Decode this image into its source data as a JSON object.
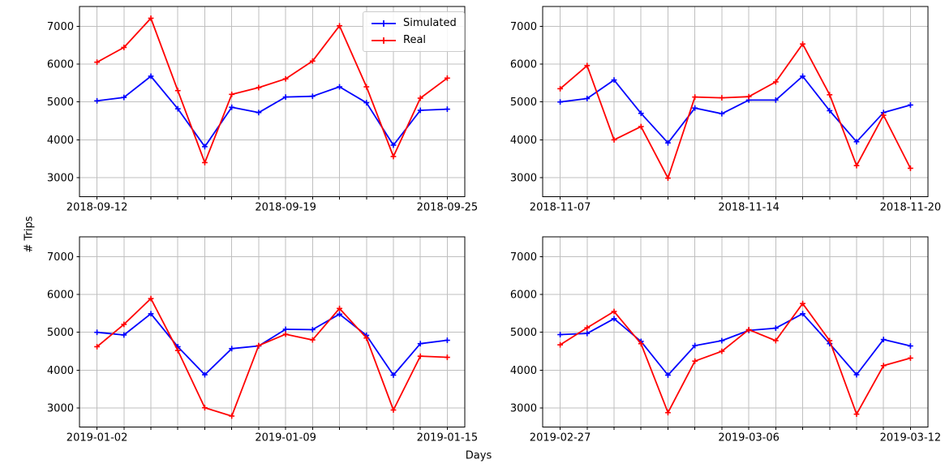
{
  "figure": {
    "background": "#ffffff",
    "ylabel": "# Trips",
    "xlabel": "Days",
    "colors": {
      "grid": "#bfbfbf",
      "spine": "#000000",
      "text": "#000000"
    }
  },
  "legend": {
    "items": [
      {
        "label": "Simulated",
        "color": "#0000ff",
        "marker": "plus"
      },
      {
        "label": "Real",
        "color": "#ff0000",
        "marker": "plus"
      }
    ]
  },
  "chart_data": [
    {
      "type": "line",
      "position": "top-left",
      "x": [
        "2018-09-12",
        "2018-09-13",
        "2018-09-14",
        "2018-09-15",
        "2018-09-16",
        "2018-09-17",
        "2018-09-18",
        "2018-09-19",
        "2018-09-20",
        "2018-09-21",
        "2018-09-22",
        "2018-09-23",
        "2018-09-24",
        "2018-09-25"
      ],
      "xtick_labels": [
        "2018-09-12",
        "2018-09-19",
        "2018-09-25"
      ],
      "xtick_indices": [
        0,
        7,
        13
      ],
      "yticks": [
        3000,
        4000,
        5000,
        6000,
        7000
      ],
      "ylim": [
        2500,
        7520
      ],
      "grid": true,
      "series": [
        {
          "name": "Simulated",
          "color": "#0000ff",
          "marker": "plus",
          "values": [
            5030,
            5120,
            5680,
            4820,
            3820,
            4860,
            4720,
            5130,
            5150,
            5400,
            4980,
            3860,
            4780,
            4810
          ]
        },
        {
          "name": "Real",
          "color": "#ff0000",
          "marker": "plus",
          "values": [
            6050,
            6440,
            7210,
            5300,
            3400,
            5200,
            5380,
            5610,
            6080,
            7010,
            5400,
            3560,
            5100,
            5630
          ]
        }
      ]
    },
    {
      "type": "line",
      "position": "top-right",
      "x": [
        "2018-11-07",
        "2018-11-08",
        "2018-11-09",
        "2018-11-10",
        "2018-11-11",
        "2018-11-12",
        "2018-11-13",
        "2018-11-14",
        "2018-11-15",
        "2018-11-16",
        "2018-11-17",
        "2018-11-18",
        "2018-11-19",
        "2018-11-20"
      ],
      "xtick_labels": [
        "2018-11-07",
        "2018-11-14",
        "2018-11-20"
      ],
      "xtick_indices": [
        0,
        7,
        13
      ],
      "yticks": [
        3000,
        4000,
        5000,
        6000,
        7000
      ],
      "ylim": [
        2500,
        7520
      ],
      "grid": true,
      "series": [
        {
          "name": "Simulated",
          "color": "#0000ff",
          "marker": "plus",
          "values": [
            5000,
            5090,
            5580,
            4700,
            3920,
            4840,
            4690,
            5050,
            5050,
            5680,
            4770,
            3950,
            4720,
            4920
          ]
        },
        {
          "name": "Real",
          "color": "#ff0000",
          "marker": "plus",
          "values": [
            5350,
            5960,
            4000,
            4350,
            2990,
            5130,
            5110,
            5140,
            5530,
            6530,
            5190,
            3320,
            4650,
            3250
          ]
        }
      ]
    },
    {
      "type": "line",
      "position": "bottom-left",
      "x": [
        "2019-01-02",
        "2019-01-03",
        "2019-01-04",
        "2019-01-05",
        "2019-01-06",
        "2019-01-07",
        "2019-01-08",
        "2019-01-09",
        "2019-01-10",
        "2019-01-11",
        "2019-01-12",
        "2019-01-13",
        "2019-01-14",
        "2019-01-15"
      ],
      "xtick_labels": [
        "2019-01-02",
        "2019-01-09",
        "2019-01-15"
      ],
      "xtick_indices": [
        0,
        7,
        13
      ],
      "yticks": [
        3000,
        4000,
        5000,
        6000,
        7000
      ],
      "ylim": [
        2500,
        7520
      ],
      "grid": true,
      "series": [
        {
          "name": "Simulated",
          "color": "#0000ff",
          "marker": "plus",
          "values": [
            5000,
            4930,
            5490,
            4620,
            3880,
            4570,
            4640,
            5080,
            5070,
            5480,
            4920,
            3870,
            4700,
            4790
          ]
        },
        {
          "name": "Real",
          "color": "#ff0000",
          "marker": "plus",
          "values": [
            4620,
            5210,
            5890,
            4520,
            3010,
            2790,
            4650,
            4950,
            4800,
            5630,
            4850,
            2950,
            4370,
            4340
          ]
        }
      ]
    },
    {
      "type": "line",
      "position": "bottom-right",
      "x": [
        "2019-02-27",
        "2019-02-28",
        "2019-03-01",
        "2019-03-02",
        "2019-03-03",
        "2019-03-04",
        "2019-03-05",
        "2019-03-06",
        "2019-03-07",
        "2019-03-08",
        "2019-03-09",
        "2019-03-10",
        "2019-03-11",
        "2019-03-12"
      ],
      "xtick_labels": [
        "2019-02-27",
        "2019-03-06",
        "2019-03-12"
      ],
      "xtick_indices": [
        0,
        7,
        13
      ],
      "yticks": [
        3000,
        4000,
        5000,
        6000,
        7000
      ],
      "ylim": [
        2500,
        7520
      ],
      "grid": true,
      "series": [
        {
          "name": "Simulated",
          "color": "#0000ff",
          "marker": "plus",
          "values": [
            4940,
            4970,
            5360,
            4760,
            3870,
            4650,
            4780,
            5050,
            5110,
            5490,
            4700,
            3880,
            4810,
            4640
          ]
        },
        {
          "name": "Real",
          "color": "#ff0000",
          "marker": "plus",
          "values": [
            4670,
            5120,
            5550,
            4700,
            2880,
            4240,
            4500,
            5070,
            4780,
            5760,
            4780,
            2840,
            4120,
            4320
          ]
        }
      ]
    }
  ]
}
